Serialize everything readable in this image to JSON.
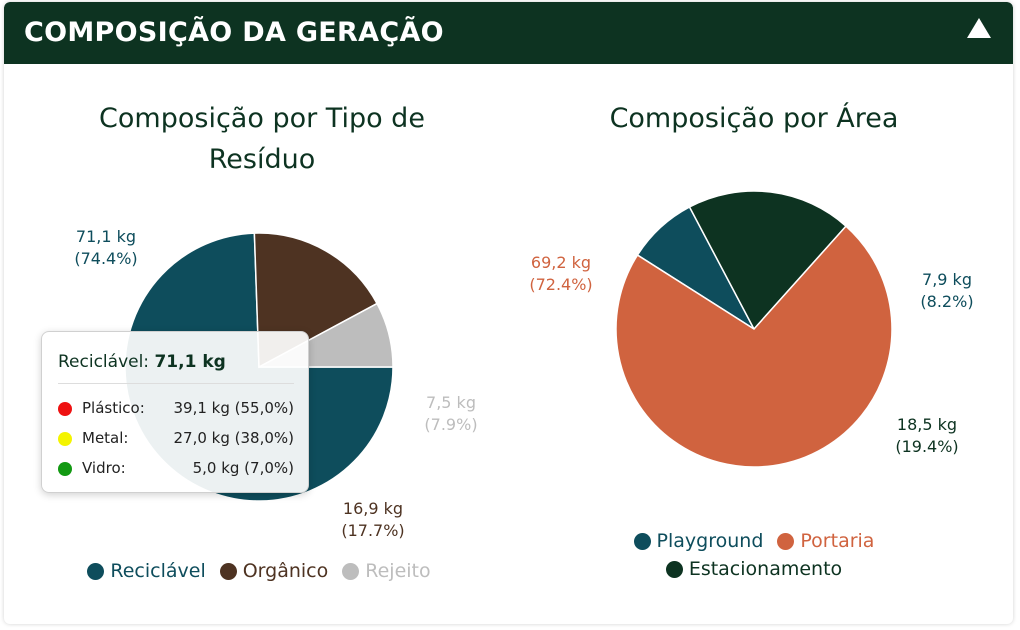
{
  "header": {
    "title": "COMPOSIÇÃO DA GERAÇÃO"
  },
  "colors": {
    "header": "#0d3321",
    "reciclavel": "#0e4d5c",
    "organico": "#4e3322",
    "rejeito": "#bdbdbd",
    "playground": "#0e4d5c",
    "portaria": "#d0633f",
    "estacionamento": "#0d3321"
  },
  "chart_data": [
    {
      "type": "pie",
      "title": "Composição por Tipo de Resíduo",
      "slices": [
        {
          "name": "Reciclável",
          "value": 71.1,
          "value_label": "71,1 kg",
          "percent_label": "(74.4%)",
          "color": "#0e4d5c"
        },
        {
          "name": "Orgânico",
          "value": 16.9,
          "value_label": "16,9 kg",
          "percent_label": "(17.7%)",
          "color": "#4e3322"
        },
        {
          "name": "Rejeito",
          "value": 7.5,
          "value_label": "7,5 kg",
          "percent_label": "(7.9%)",
          "color": "#bdbdbd",
          "label_color": "#bdbdbd"
        }
      ],
      "legend": "bottom",
      "tooltip": {
        "title": "Reciclável:",
        "total": "71,1 kg",
        "items": [
          {
            "name": "Plástico:",
            "value": "39,1 kg (55,0%)",
            "color": "#ee1111"
          },
          {
            "name": "Metal:",
            "value": "27,0 kg (38,0%)",
            "color": "#f4f400"
          },
          {
            "name": "Vidro:",
            "value": "5,0 kg (7,0%)",
            "color": "#129912"
          }
        ]
      }
    },
    {
      "type": "pie",
      "title": "Composição por Área",
      "slices": [
        {
          "name": "Playground",
          "value": 7.9,
          "value_label": "7,9 kg",
          "percent_label": "(8.2%)",
          "color": "#0e4d5c"
        },
        {
          "name": "Estacionamento",
          "value": 18.5,
          "value_label": "18,5 kg",
          "percent_label": "(19.4%)",
          "color": "#0d3321"
        },
        {
          "name": "Portaria",
          "value": 69.2,
          "value_label": "69,2 kg",
          "percent_label": "(72.4%)",
          "color": "#d0633f"
        }
      ],
      "legend": "bottom",
      "legend_order": [
        "Playground",
        "Portaria",
        "Estacionamento"
      ]
    }
  ]
}
